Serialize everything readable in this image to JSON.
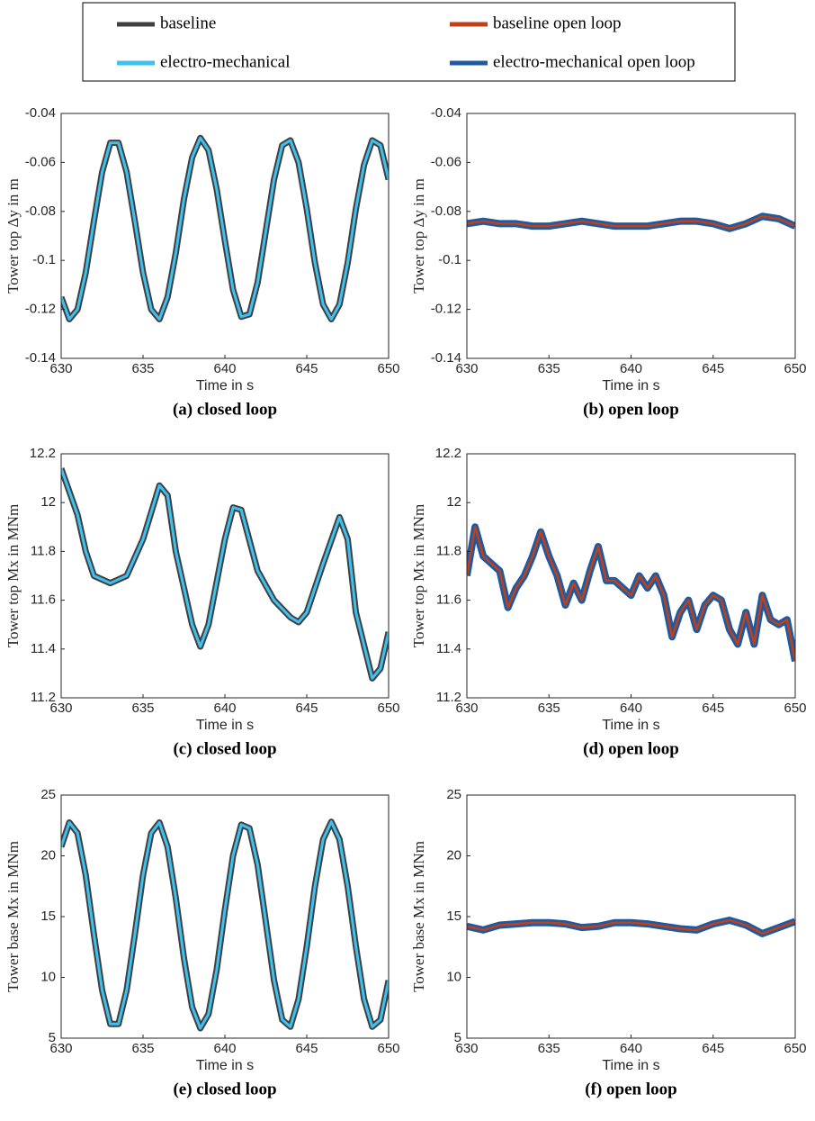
{
  "chart_data": [
    {
      "type": "line",
      "caption": "(a) closed loop",
      "xlabel": "Time in s",
      "ylabel": "Tower top Δy in m",
      "xlim": [
        630,
        650
      ],
      "xticks": [
        630,
        635,
        640,
        645,
        650
      ],
      "ylim": [
        -0.14,
        -0.04
      ],
      "yticks": [
        -0.14,
        -0.12,
        -0.1,
        -0.08,
        -0.06,
        -0.04
      ],
      "x": [
        630,
        630.5,
        631,
        631.5,
        632,
        632.5,
        633,
        633.5,
        634,
        634.5,
        635,
        635.5,
        636,
        636.5,
        637,
        637.5,
        638,
        638.5,
        639,
        639.5,
        640,
        640.5,
        641,
        641.5,
        642,
        642.5,
        643,
        643.5,
        644,
        644.5,
        645,
        645.5,
        646,
        646.5,
        647,
        647.5,
        648,
        648.5,
        649,
        649.5,
        650
      ],
      "series": [
        {
          "name": "baseline",
          "color": "#404040",
          "width": 7,
          "values": [
            -0.115,
            -0.124,
            -0.12,
            -0.105,
            -0.084,
            -0.064,
            -0.052,
            -0.052,
            -0.064,
            -0.084,
            -0.105,
            -0.12,
            -0.124,
            -0.115,
            -0.097,
            -0.075,
            -0.058,
            -0.05,
            -0.055,
            -0.071,
            -0.092,
            -0.112,
            -0.123,
            -0.122,
            -0.109,
            -0.088,
            -0.067,
            -0.053,
            -0.051,
            -0.06,
            -0.079,
            -0.101,
            -0.118,
            -0.124,
            -0.118,
            -0.101,
            -0.079,
            -0.061,
            -0.051,
            -0.053,
            -0.067
          ]
        },
        {
          "name": "electro-mechanical",
          "color": "#3ec1f0",
          "width": 3,
          "values": [
            -0.115,
            -0.124,
            -0.12,
            -0.105,
            -0.084,
            -0.064,
            -0.052,
            -0.052,
            -0.064,
            -0.084,
            -0.105,
            -0.12,
            -0.124,
            -0.115,
            -0.097,
            -0.075,
            -0.058,
            -0.05,
            -0.055,
            -0.071,
            -0.092,
            -0.112,
            -0.123,
            -0.122,
            -0.109,
            -0.088,
            -0.067,
            -0.053,
            -0.051,
            -0.06,
            -0.079,
            -0.101,
            -0.118,
            -0.124,
            -0.118,
            -0.101,
            -0.079,
            -0.061,
            -0.051,
            -0.053,
            -0.067
          ]
        }
      ]
    },
    {
      "type": "line",
      "caption": "(b) open loop",
      "xlabel": "Time in s",
      "ylabel": "Tower top Δy in m",
      "xlim": [
        630,
        650
      ],
      "xticks": [
        630,
        635,
        640,
        645,
        650
      ],
      "ylim": [
        -0.14,
        -0.04
      ],
      "yticks": [
        -0.14,
        -0.12,
        -0.1,
        -0.08,
        -0.06,
        -0.04
      ],
      "x": [
        630,
        631,
        632,
        633,
        634,
        635,
        636,
        637,
        638,
        639,
        640,
        641,
        642,
        643,
        644,
        645,
        646,
        647,
        648,
        649,
        650
      ],
      "series": [
        {
          "name": "electro-mechanical open loop",
          "color": "#1f5aa0",
          "width": 8,
          "values": [
            -0.085,
            -0.084,
            -0.085,
            -0.085,
            -0.086,
            -0.086,
            -0.085,
            -0.084,
            -0.085,
            -0.086,
            -0.086,
            -0.086,
            -0.085,
            -0.084,
            -0.084,
            -0.085,
            -0.087,
            -0.085,
            -0.082,
            -0.083,
            -0.086
          ]
        },
        {
          "name": "baseline open loop",
          "color": "#c0401a",
          "width": 2.5,
          "values": [
            -0.085,
            -0.084,
            -0.085,
            -0.085,
            -0.086,
            -0.086,
            -0.085,
            -0.084,
            -0.085,
            -0.086,
            -0.086,
            -0.086,
            -0.085,
            -0.084,
            -0.084,
            -0.085,
            -0.087,
            -0.085,
            -0.082,
            -0.083,
            -0.086
          ]
        }
      ]
    },
    {
      "type": "line",
      "caption": "(c) closed loop",
      "xlabel": "Time in s",
      "ylabel": "Tower top Mx in MNm",
      "xlim": [
        630,
        650
      ],
      "xticks": [
        630,
        635,
        640,
        645,
        650
      ],
      "ylim": [
        11.2,
        12.2
      ],
      "yticks": [
        11.2,
        11.4,
        11.6,
        11.8,
        12,
        12.2
      ],
      "x": [
        630,
        631,
        631.5,
        632,
        633,
        634,
        635,
        636,
        636.5,
        637,
        638,
        638.5,
        639,
        640,
        640.5,
        641,
        642,
        643,
        644,
        644.5,
        645,
        646,
        647,
        647.5,
        648,
        649,
        649.5,
        650
      ],
      "series": [
        {
          "name": "baseline",
          "color": "#404040",
          "width": 7,
          "values": [
            12.14,
            11.95,
            11.8,
            11.7,
            11.67,
            11.7,
            11.85,
            12.07,
            12.03,
            11.8,
            11.5,
            11.41,
            11.5,
            11.85,
            11.98,
            11.97,
            11.72,
            11.6,
            11.53,
            11.51,
            11.55,
            11.75,
            11.94,
            11.85,
            11.55,
            11.28,
            11.32,
            11.47
          ]
        },
        {
          "name": "electro-mechanical",
          "color": "#3ec1f0",
          "width": 3,
          "values": [
            12.14,
            11.95,
            11.8,
            11.7,
            11.67,
            11.7,
            11.85,
            12.07,
            12.03,
            11.8,
            11.5,
            11.41,
            11.5,
            11.85,
            11.98,
            11.97,
            11.72,
            11.6,
            11.53,
            11.51,
            11.55,
            11.75,
            11.94,
            11.85,
            11.55,
            11.28,
            11.32,
            11.47
          ]
        }
      ]
    },
    {
      "type": "line",
      "caption": "(d) open loop",
      "xlabel": "Time in s",
      "ylabel": "Tower top Mx in MNm",
      "xlim": [
        630,
        650
      ],
      "xticks": [
        630,
        635,
        640,
        645,
        650
      ],
      "ylim": [
        11.2,
        12.2
      ],
      "yticks": [
        11.2,
        11.4,
        11.6,
        11.8,
        12,
        12.2
      ],
      "x": [
        630,
        630.5,
        631,
        631.5,
        632,
        632.5,
        633,
        633.5,
        634,
        634.5,
        635,
        635.5,
        636,
        636.5,
        637,
        637.5,
        638,
        638.5,
        639,
        639.5,
        640,
        640.5,
        641,
        641.5,
        642,
        642.5,
        643,
        643.5,
        644,
        644.5,
        645,
        645.5,
        646,
        646.5,
        647,
        647.5,
        648,
        648.5,
        649,
        649.5,
        650
      ],
      "series": [
        {
          "name": "electro-mechanical open loop",
          "color": "#1f5aa0",
          "width": 8,
          "values": [
            11.7,
            11.9,
            11.78,
            11.75,
            11.72,
            11.57,
            11.65,
            11.7,
            11.78,
            11.88,
            11.78,
            11.7,
            11.58,
            11.67,
            11.6,
            11.72,
            11.82,
            11.68,
            11.68,
            11.65,
            11.62,
            11.7,
            11.65,
            11.7,
            11.62,
            11.45,
            11.55,
            11.6,
            11.48,
            11.58,
            11.62,
            11.6,
            11.48,
            11.42,
            11.55,
            11.42,
            11.62,
            11.52,
            11.5,
            11.52,
            11.35
          ]
        },
        {
          "name": "baseline open loop",
          "color": "#c0401a",
          "width": 2.5,
          "values": [
            11.7,
            11.9,
            11.78,
            11.75,
            11.72,
            11.57,
            11.65,
            11.7,
            11.78,
            11.88,
            11.78,
            11.7,
            11.58,
            11.67,
            11.6,
            11.72,
            11.82,
            11.68,
            11.68,
            11.65,
            11.62,
            11.7,
            11.65,
            11.7,
            11.62,
            11.45,
            11.55,
            11.6,
            11.48,
            11.58,
            11.62,
            11.6,
            11.48,
            11.42,
            11.55,
            11.42,
            11.62,
            11.52,
            11.5,
            11.52,
            11.35
          ]
        }
      ]
    },
    {
      "type": "line",
      "caption": "(e) closed loop",
      "xlabel": "Time in s",
      "ylabel": "Tower base Mx in MNm",
      "xlim": [
        630,
        650
      ],
      "xticks": [
        630,
        635,
        640,
        645,
        650
      ],
      "ylim": [
        5,
        25
      ],
      "yticks": [
        5,
        10,
        15,
        20,
        25
      ],
      "x": [
        630,
        630.5,
        631,
        631.5,
        632,
        632.5,
        633,
        633.5,
        634,
        634.5,
        635,
        635.5,
        636,
        636.5,
        637,
        637.5,
        638,
        638.5,
        639,
        639.5,
        640,
        640.5,
        641,
        641.5,
        642,
        642.5,
        643,
        643.5,
        644,
        644.5,
        645,
        645.5,
        646,
        646.5,
        647,
        647.5,
        648,
        648.5,
        649,
        649.5,
        650
      ],
      "series": [
        {
          "name": "baseline",
          "color": "#404040",
          "width": 7,
          "values": [
            20.74,
            22.74,
            21.87,
            18.41,
            13.54,
            8.95,
            6.17,
            6.17,
            8.95,
            13.54,
            18.41,
            21.87,
            22.74,
            20.74,
            16.54,
            11.58,
            7.55,
            5.82,
            6.98,
            10.64,
            15.55,
            20.03,
            22.56,
            22.27,
            19.26,
            14.56,
            9.77,
            6.52,
            5.94,
            8.2,
            12.54,
            17.49,
            21.35,
            22.8,
            21.36,
            17.5,
            12.56,
            8.21,
            5.94,
            6.51,
            9.75
          ]
        },
        {
          "name": "electro-mechanical",
          "color": "#3ec1f0",
          "width": 3,
          "values": [
            20.74,
            22.74,
            21.87,
            18.41,
            13.54,
            8.95,
            6.17,
            6.17,
            8.95,
            13.54,
            18.41,
            21.87,
            22.74,
            20.74,
            16.54,
            11.58,
            7.55,
            5.82,
            6.98,
            10.64,
            15.55,
            20.03,
            22.56,
            22.27,
            19.26,
            14.56,
            9.77,
            6.52,
            5.94,
            8.2,
            12.54,
            17.49,
            21.35,
            22.8,
            21.36,
            17.5,
            12.56,
            8.21,
            5.94,
            6.51,
            9.75
          ]
        }
      ]
    },
    {
      "type": "line",
      "caption": "(f) open loop",
      "xlabel": "Time in s",
      "ylabel": "Tower base Mx in MNm",
      "xlim": [
        630,
        650
      ],
      "xticks": [
        630,
        635,
        640,
        645,
        650
      ],
      "ylim": [
        5,
        25
      ],
      "yticks": [
        5,
        10,
        15,
        20,
        25
      ],
      "x": [
        630,
        631,
        632,
        633,
        634,
        635,
        636,
        637,
        638,
        639,
        640,
        641,
        642,
        643,
        644,
        645,
        646,
        647,
        648,
        649,
        650
      ],
      "series": [
        {
          "name": "electro-mechanical open loop",
          "color": "#1f5aa0",
          "width": 8,
          "values": [
            14.2,
            13.9,
            14.3,
            14.4,
            14.5,
            14.5,
            14.4,
            14.1,
            14.2,
            14.5,
            14.5,
            14.4,
            14.2,
            14,
            13.9,
            14.4,
            14.7,
            14.3,
            13.6,
            14.1,
            14.6
          ]
        },
        {
          "name": "baseline open loop",
          "color": "#c0401a",
          "width": 2.5,
          "values": [
            14.2,
            13.9,
            14.3,
            14.4,
            14.5,
            14.5,
            14.4,
            14.1,
            14.2,
            14.5,
            14.5,
            14.4,
            14.2,
            14,
            13.9,
            14.4,
            14.7,
            14.3,
            13.6,
            14.1,
            14.6
          ]
        }
      ]
    }
  ]
}
